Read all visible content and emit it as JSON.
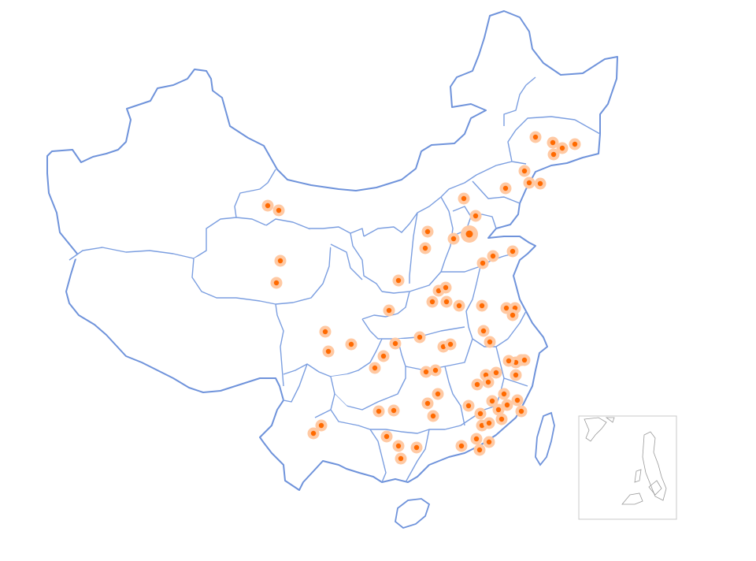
{
  "map": {
    "region": "China",
    "marker_color": "#ff6a00",
    "halo_color": "#ffc9a3",
    "border_color": "#7b9ee0",
    "points": [
      {
        "id": "p1",
        "size": 1
      },
      {
        "id": "p2",
        "size": 1
      },
      {
        "id": "p3",
        "size": 1
      },
      {
        "id": "p4",
        "size": 1
      },
      {
        "id": "p5",
        "size": 1
      },
      {
        "id": "p6",
        "size": 1
      },
      {
        "id": "p7",
        "size": 1
      },
      {
        "id": "p8",
        "size": 1
      },
      {
        "id": "p9",
        "size": 1
      },
      {
        "id": "p10",
        "size": 1
      },
      {
        "id": "p11",
        "size": 1
      },
      {
        "id": "p12",
        "size": 1
      },
      {
        "id": "p13",
        "size": 1
      },
      {
        "id": "p14",
        "size": 1
      },
      {
        "id": "p15",
        "size": 1
      },
      {
        "id": "p16",
        "size": 1
      },
      {
        "id": "p17",
        "size": 1
      },
      {
        "id": "p18",
        "size": 2
      },
      {
        "id": "p19",
        "size": 1
      },
      {
        "id": "p20",
        "size": 1
      },
      {
        "id": "p21",
        "size": 1
      },
      {
        "id": "p22",
        "size": 1
      },
      {
        "id": "p23",
        "size": 1
      },
      {
        "id": "p24",
        "size": 1
      },
      {
        "id": "p25",
        "size": 1
      },
      {
        "id": "p26",
        "size": 1
      },
      {
        "id": "p27",
        "size": 1
      },
      {
        "id": "p28",
        "size": 1
      },
      {
        "id": "p29",
        "size": 1
      },
      {
        "id": "p30",
        "size": 1
      },
      {
        "id": "p31",
        "size": 1
      },
      {
        "id": "p32",
        "size": 1
      },
      {
        "id": "p33",
        "size": 1
      },
      {
        "id": "p34",
        "size": 1
      },
      {
        "id": "p35",
        "size": 1
      },
      {
        "id": "p36",
        "size": 1
      },
      {
        "id": "p37",
        "size": 1
      },
      {
        "id": "p38",
        "size": 1
      },
      {
        "id": "p39",
        "size": 1
      },
      {
        "id": "p40",
        "size": 1
      },
      {
        "id": "p41",
        "size": 1
      },
      {
        "id": "p42",
        "size": 1
      },
      {
        "id": "p43",
        "size": 1
      },
      {
        "id": "p44",
        "size": 1
      },
      {
        "id": "p45",
        "size": 1
      },
      {
        "id": "p46",
        "size": 1
      },
      {
        "id": "p47",
        "size": 1
      },
      {
        "id": "p48",
        "size": 1
      },
      {
        "id": "p49",
        "size": 1
      },
      {
        "id": "p50",
        "size": 1
      },
      {
        "id": "p51",
        "size": 1
      },
      {
        "id": "p52",
        "size": 1
      },
      {
        "id": "p53",
        "size": 1
      },
      {
        "id": "p54",
        "size": 1
      },
      {
        "id": "p55",
        "size": 1
      },
      {
        "id": "p56",
        "size": 1
      },
      {
        "id": "p57",
        "size": 1
      },
      {
        "id": "p58",
        "size": 1
      },
      {
        "id": "p59",
        "size": 1
      },
      {
        "id": "p60",
        "size": 1
      },
      {
        "id": "p61",
        "size": 1
      },
      {
        "id": "p62",
        "size": 1
      },
      {
        "id": "p63",
        "size": 1
      },
      {
        "id": "p64",
        "size": 1
      },
      {
        "id": "p65",
        "size": 1
      },
      {
        "id": "p66",
        "size": 1
      },
      {
        "id": "p67",
        "size": 1
      },
      {
        "id": "p68",
        "size": 1
      },
      {
        "id": "p69",
        "size": 1
      },
      {
        "id": "p70",
        "size": 1
      },
      {
        "id": "p71",
        "size": 1
      },
      {
        "id": "p72",
        "size": 1
      },
      {
        "id": "p73",
        "size": 1
      },
      {
        "id": "p74",
        "size": 1
      },
      {
        "id": "p75",
        "size": 1
      },
      {
        "id": "p76",
        "size": 1
      },
      {
        "id": "p77",
        "size": 1
      },
      {
        "id": "p78",
        "size": 1
      },
      {
        "id": "p79",
        "size": 1
      },
      {
        "id": "p80",
        "size": 1
      },
      {
        "id": "p81",
        "size": 1
      }
    ]
  }
}
